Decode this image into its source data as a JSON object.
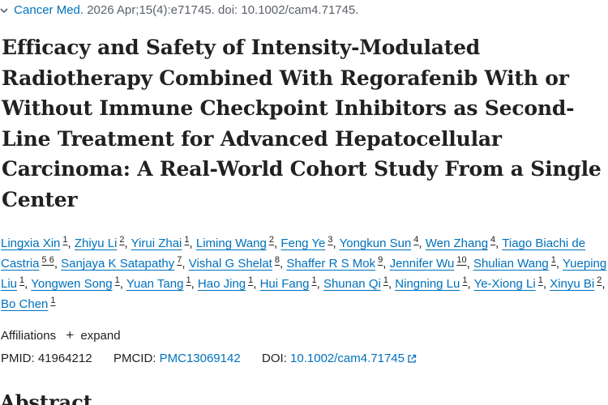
{
  "citation": {
    "journal": "Cancer Med.",
    "details": "2026 Apr;15(4):e71745. doi: 10.1002/cam4.71745."
  },
  "title": "Efficacy and Safety of Intensity-Modulated Radiotherapy Combined With Regorafenib With or Without Immune Checkpoint Inhibitors as Second-Line Treatment for Advanced Hepatocellular Carcinoma: A Real-World Cohort Study From a Single Center",
  "authors": [
    {
      "name": "Lingxia Xin",
      "aff": "1"
    },
    {
      "name": "Zhiyu Li",
      "aff": "2"
    },
    {
      "name": "Yirui Zhai",
      "aff": "1"
    },
    {
      "name": "Liming Wang",
      "aff": "2"
    },
    {
      "name": "Feng Ye",
      "aff": "3"
    },
    {
      "name": "Yongkun Sun",
      "aff": "4"
    },
    {
      "name": "Wen Zhang",
      "aff": "4"
    },
    {
      "name": "Tiago Biachi de Castria",
      "aff": "5 6"
    },
    {
      "name": "Sanjaya K Satapathy",
      "aff": "7"
    },
    {
      "name": "Vishal G Shelat",
      "aff": "8"
    },
    {
      "name": "Shaffer R S Mok",
      "aff": "9"
    },
    {
      "name": "Jennifer Wu",
      "aff": "10"
    },
    {
      "name": "Shulian Wang",
      "aff": "1"
    },
    {
      "name": "Yueping Liu",
      "aff": "1"
    },
    {
      "name": "Yongwen Song",
      "aff": "1"
    },
    {
      "name": "Yuan Tang",
      "aff": "1"
    },
    {
      "name": "Hao Jing",
      "aff": "1"
    },
    {
      "name": "Hui Fang",
      "aff": "1"
    },
    {
      "name": "Shunan Qi",
      "aff": "1"
    },
    {
      "name": "Ningning Lu",
      "aff": "1"
    },
    {
      "name": "Ye-Xiong Li",
      "aff": "1"
    },
    {
      "name": "Xinyu Bi",
      "aff": "2"
    },
    {
      "name": "Bo Chen",
      "aff": "1"
    }
  ],
  "affiliations": {
    "label": "Affiliations",
    "expand_label": "expand"
  },
  "identifiers": {
    "pmid_label": "PMID:",
    "pmid": "41964212",
    "pmcid_label": "PMCID:",
    "pmcid": "PMC13069142",
    "doi_label": "DOI:",
    "doi": "10.1002/cam4.71745"
  },
  "abstract_heading": "Abstract",
  "icons": {
    "journal_toggle": "chevron-down-icon",
    "expand": "plus-icon",
    "doi_link": "external-link-icon"
  },
  "colors": {
    "link": "#0071bc",
    "text": "#212121",
    "muted": "#5b616b"
  }
}
